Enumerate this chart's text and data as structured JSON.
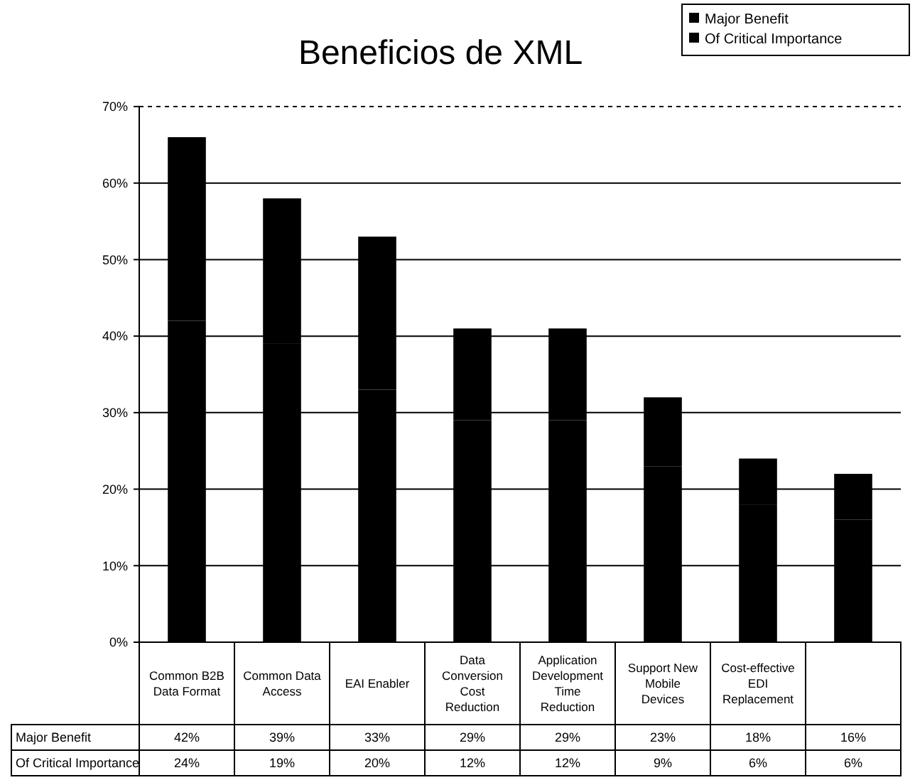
{
  "chart_data": {
    "type": "bar",
    "title": "Beneficios de XML",
    "stacked": true,
    "categories": [
      "Common B2B Data Format",
      "Common Data Access",
      "EAI Enabler",
      "Data Conversion Cost Reduction",
      "Application Development Time Reduction",
      "Support New Mobile Devices",
      "Cost-effective EDI Replacement",
      null
    ],
    "series": [
      {
        "name": "Major Benefit",
        "color": "#000000",
        "values": [
          42,
          39,
          33,
          29,
          29,
          23,
          18,
          16
        ],
        "value_labels": [
          "42%",
          "39%",
          "33%",
          "29%",
          "29%",
          "23%",
          "18%",
          "16%"
        ]
      },
      {
        "name": "Of Critical Importance",
        "color": "#000000",
        "values": [
          24,
          19,
          20,
          12,
          12,
          9,
          6,
          6
        ],
        "value_labels": [
          "24%",
          "19%",
          "20%",
          "12%",
          "12%",
          "9%",
          "6%",
          "6%"
        ]
      }
    ],
    "ylim": [
      0,
      70
    ],
    "yticks": [
      {
        "value": 0,
        "label": "0%"
      },
      {
        "value": 10,
        "label": "10%"
      },
      {
        "value": 20,
        "label": "20%"
      },
      {
        "value": 30,
        "label": "30%"
      },
      {
        "value": 40,
        "label": "40%"
      },
      {
        "value": 50,
        "label": "50%"
      },
      {
        "value": 60,
        "label": "60%"
      },
      {
        "value": 70,
        "label": "70%"
      }
    ],
    "grid": "y",
    "legend": "top right"
  }
}
